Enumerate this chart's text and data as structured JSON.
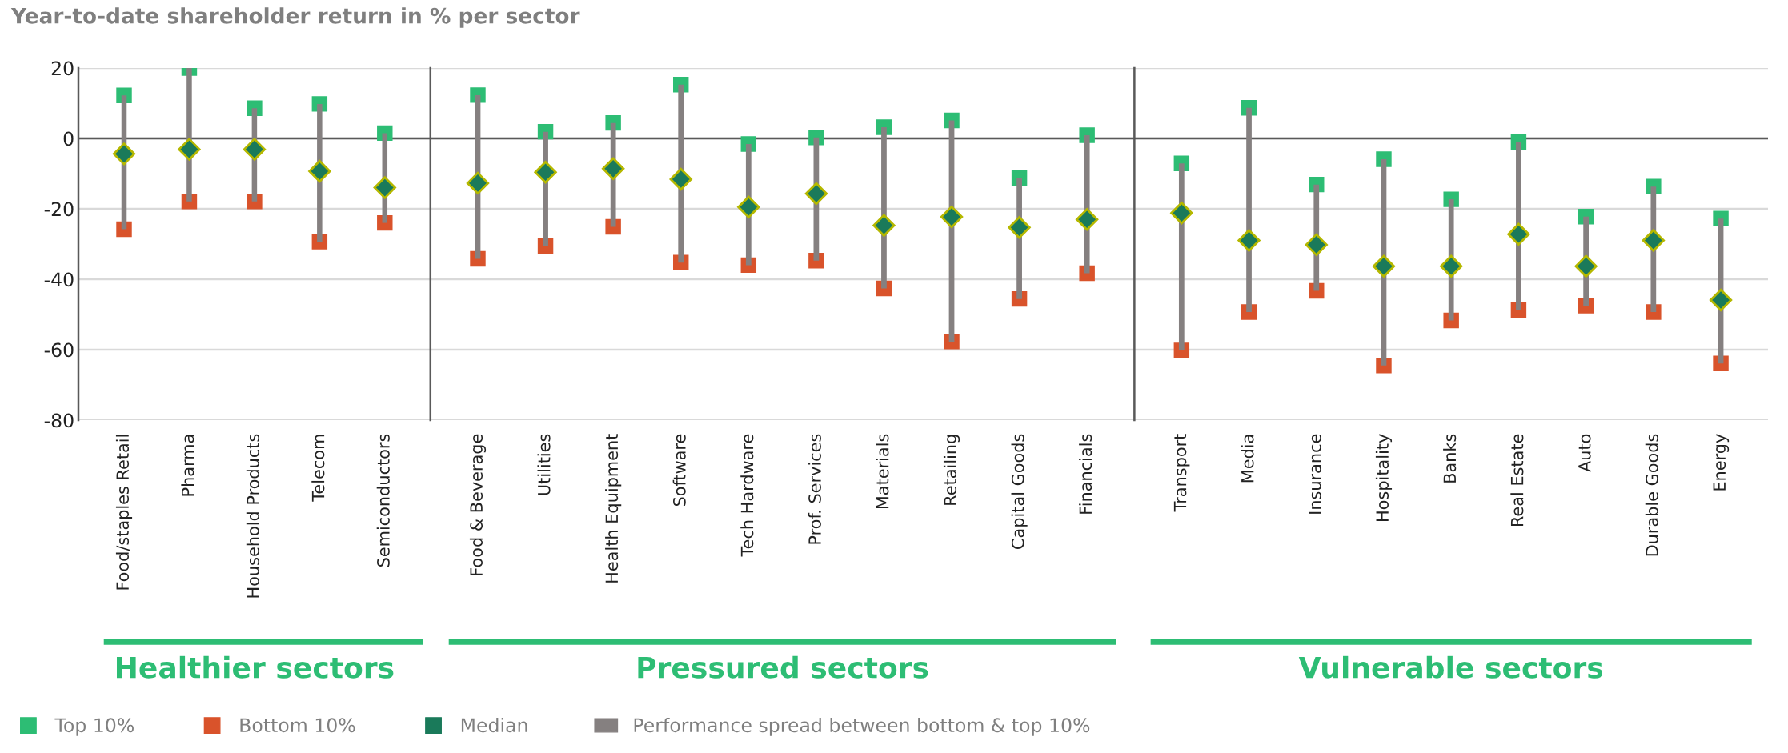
{
  "chart_data": [
    {
      "type": "scatter",
      "title": "Year-to-date shareholder return in % per sector",
      "xlabel": "Healthier sectors",
      "categories": [
        "Food/staples Retail",
        "Pharma",
        "Household Products",
        "Telecom",
        "Semiconductors"
      ],
      "ylim": [
        -80,
        20
      ],
      "yticks": [
        -80,
        -60,
        -40,
        -20,
        0,
        20
      ],
      "grid": "y",
      "legend": "bottom",
      "ref_lines": [
        {
          "axis": "y",
          "value": 0,
          "color": "#595959"
        }
      ],
      "series": [
        {
          "name": "Performance spread between bottom & top 10%",
          "type": "bar",
          "color": "#858080",
          "base": [
            -25.8,
            -17.9,
            -17.9,
            -29.3,
            -24.0
          ],
          "values": [
            38.0,
            37.9,
            26.5,
            39.1,
            25.5
          ]
        },
        {
          "name": "Top 10%",
          "color": "#2dbd74",
          "marker": "square",
          "values": [
            12.2,
            20.0,
            8.6,
            9.8,
            1.5
          ]
        },
        {
          "name": "Bottom 10%",
          "color": "#d9532b",
          "marker": "square",
          "values": [
            -25.8,
            -17.9,
            -17.9,
            -29.3,
            -24.0
          ]
        },
        {
          "name": "Median",
          "color": "#1a7a5a",
          "marker": "diamond",
          "values": [
            -4.4,
            -3.1,
            -3.1,
            -9.3,
            -14.0
          ]
        }
      ]
    },
    {
      "type": "scatter",
      "xlabel": "Pressured sectors",
      "categories": [
        "Food & Beverage",
        "Utilities",
        "Health Equipment",
        "Software",
        "Tech Hardware",
        "Prof. Services",
        "Materials",
        "Retailing",
        "Capital Goods",
        "Financials"
      ],
      "ylim": [
        -80,
        20
      ],
      "grid": "y",
      "tick_labels": "x",
      "ref_lines": [
        {
          "axis": "y",
          "value": 0,
          "color": "#595959"
        }
      ],
      "series": [
        {
          "type": "bar",
          "color": "#858080",
          "base": [
            -34.2,
            -30.5,
            -25.1,
            -35.3,
            -36.0,
            -34.7,
            -42.6,
            -57.7,
            -45.6,
            -38.3
          ],
          "values": [
            46.5,
            32.4,
            29.5,
            50.6,
            34.4,
            35.0,
            45.8,
            62.8,
            34.4,
            39.2
          ]
        },
        {
          "color": "#2dbd74",
          "marker": "square",
          "values": [
            12.3,
            1.9,
            4.4,
            15.3,
            -1.6,
            0.3,
            3.2,
            5.1,
            -11.2,
            0.9
          ]
        },
        {
          "color": "#d9532b",
          "marker": "square",
          "values": [
            -34.2,
            -30.5,
            -25.1,
            -35.3,
            -36.0,
            -34.7,
            -42.6,
            -57.7,
            -45.6,
            -38.3
          ]
        },
        {
          "color": "#1a7a5a",
          "marker": "diamond",
          "values": [
            -12.7,
            -9.6,
            -8.6,
            -11.6,
            -19.5,
            -15.7,
            -24.7,
            -22.3,
            -25.3,
            -23.0
          ]
        }
      ]
    },
    {
      "type": "scatter",
      "xlabel": "Vulnerable sectors",
      "categories": [
        "Transport",
        "Media",
        "Insurance",
        "Hospitality",
        "Banks",
        "Real Estate",
        "Auto",
        "Durable Goods",
        "Energy"
      ],
      "ylim": [
        -80,
        20
      ],
      "grid": "y",
      "tick_labels": "x",
      "ref_lines": [
        {
          "axis": "y",
          "value": 0,
          "color": "#595959"
        }
      ],
      "series": [
        {
          "type": "bar",
          "color": "#858080",
          "base": [
            -60.2,
            -49.3,
            -43.3,
            -64.5,
            -51.7,
            -48.7,
            -47.5,
            -49.3,
            -63.9
          ],
          "values": [
            53.1,
            58.0,
            30.2,
            58.6,
            34.4,
            47.7,
            25.3,
            35.6,
            41.1
          ]
        },
        {
          "color": "#2dbd74",
          "marker": "square",
          "values": [
            -7.1,
            8.7,
            -13.1,
            -5.9,
            -17.3,
            -1.0,
            -22.2,
            -13.7,
            -22.8
          ]
        },
        {
          "color": "#d9532b",
          "marker": "square",
          "values": [
            -60.2,
            -49.3,
            -43.3,
            -64.5,
            -51.7,
            -48.7,
            -47.5,
            -49.3,
            -63.9
          ]
        },
        {
          "color": "#1a7a5a",
          "marker": "diamond",
          "values": [
            -21.2,
            -29.0,
            -30.2,
            -36.3,
            -36.3,
            -27.2,
            -36.3,
            -29.0,
            -45.9
          ]
        }
      ]
    }
  ]
}
